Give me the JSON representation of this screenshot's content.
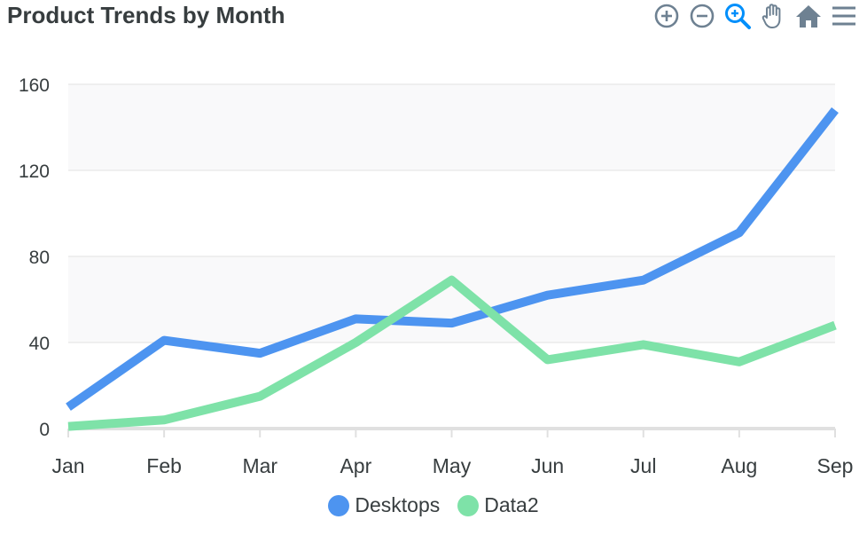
{
  "chart_data": {
    "type": "line",
    "title": "Product Trends by Month",
    "categories": [
      "Jan",
      "Feb",
      "Mar",
      "Apr",
      "May",
      "Jun",
      "Jul",
      "Aug",
      "Sep"
    ],
    "series": [
      {
        "name": "Desktops",
        "values": [
          10,
          41,
          35,
          51,
          49,
          62,
          69,
          91,
          148
        ],
        "color": "#4d94f0"
      },
      {
        "name": "Data2",
        "values": [
          1,
          4,
          15,
          40,
          69,
          32,
          39,
          31,
          48
        ],
        "color": "#7ee2a8"
      }
    ],
    "yticks": [
      0,
      40,
      80,
      120,
      160
    ],
    "ylim": [
      0,
      160
    ],
    "grid": true,
    "legend_position": "bottom-center"
  },
  "toolbar": {
    "icons": [
      "zoom-in-icon",
      "zoom-out-icon",
      "selection-zoom-icon",
      "pan-hand-icon",
      "reset-home-icon",
      "menu-icon"
    ],
    "accent_color": "#008ffb",
    "icon_color": "#6e8192"
  }
}
